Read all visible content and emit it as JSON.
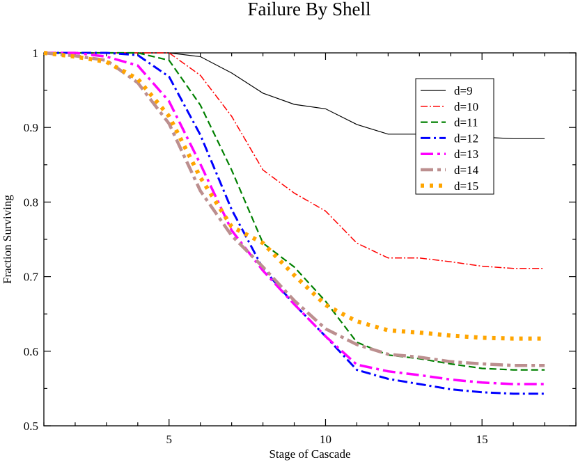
{
  "chart_data": {
    "type": "line",
    "title": "Failure By Shell",
    "xlabel": "Stage of Cascade",
    "ylabel": "Fraction Surviving",
    "xlim": [
      1,
      18
    ],
    "ylim": [
      0.5,
      1.0
    ],
    "xticks": [
      5,
      10,
      15
    ],
    "yticks": [
      0.5,
      0.6,
      0.7,
      0.8,
      0.9,
      1.0
    ],
    "ytick_labels": [
      "0.5",
      "0.6",
      "0.7",
      "0.8",
      "0.9",
      "1"
    ],
    "grid": false,
    "legend_position": "top-right",
    "x": [
      1,
      2,
      3,
      4,
      5,
      6,
      7,
      8,
      9,
      10,
      11,
      12,
      13,
      14,
      15,
      16,
      17
    ],
    "series": [
      {
        "name": "d=9",
        "color": "#000000",
        "values": [
          1.0,
          1.0,
          1.0,
          1.0,
          1.0,
          0.995,
          0.973,
          0.946,
          0.931,
          0.925,
          0.904,
          0.891,
          0.891,
          0.889,
          0.887,
          0.885,
          0.885
        ]
      },
      {
        "name": "d=10",
        "color": "#ff0000",
        "values": [
          1.0,
          1.0,
          1.0,
          1.0,
          1.0,
          0.97,
          0.915,
          0.843,
          0.812,
          0.788,
          0.745,
          0.725,
          0.725,
          0.72,
          0.714,
          0.711,
          0.711
        ]
      },
      {
        "name": "d=11",
        "color": "#008000",
        "values": [
          1.0,
          1.0,
          1.0,
          1.0,
          0.99,
          0.93,
          0.843,
          0.745,
          0.713,
          0.667,
          0.612,
          0.595,
          0.59,
          0.583,
          0.577,
          0.575,
          0.575
        ]
      },
      {
        "name": "d=12",
        "color": "#0000ff",
        "values": [
          1.0,
          1.0,
          1.0,
          0.997,
          0.968,
          0.89,
          0.79,
          0.711,
          0.663,
          0.62,
          0.575,
          0.563,
          0.556,
          0.549,
          0.545,
          0.543,
          0.543
        ]
      },
      {
        "name": "d=13",
        "color": "#ff00ff",
        "values": [
          1.0,
          1.0,
          0.995,
          0.983,
          0.935,
          0.851,
          0.762,
          0.708,
          0.663,
          0.62,
          0.582,
          0.573,
          0.568,
          0.562,
          0.558,
          0.556,
          0.556
        ]
      },
      {
        "name": "d=14",
        "color": "#bc8f8f",
        "values": [
          1.0,
          0.996,
          0.99,
          0.96,
          0.905,
          0.815,
          0.755,
          0.713,
          0.668,
          0.63,
          0.609,
          0.596,
          0.592,
          0.586,
          0.583,
          0.581,
          0.581
        ]
      },
      {
        "name": "d=15",
        "color": "#ffa500",
        "values": [
          1.0,
          0.995,
          0.988,
          0.965,
          0.915,
          0.833,
          0.767,
          0.745,
          0.702,
          0.662,
          0.64,
          0.628,
          0.625,
          0.621,
          0.618,
          0.617,
          0.617
        ]
      }
    ]
  }
}
